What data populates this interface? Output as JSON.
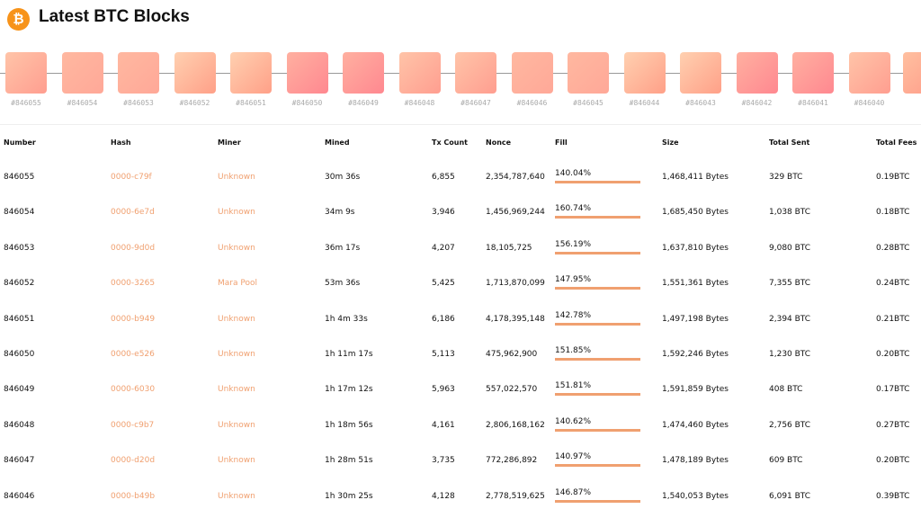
{
  "header": {
    "title": "Latest BTC Blocks"
  },
  "blocks": [
    "#846055",
    "#846054",
    "#846053",
    "#846052",
    "#846051",
    "#846050",
    "#846049",
    "#846048",
    "#846047",
    "#846046",
    "#846045",
    "#846044",
    "#846043",
    "#846042",
    "#846041",
    "#846040"
  ],
  "table": {
    "columns": [
      "Number",
      "Hash",
      "Miner",
      "Mined",
      "Tx Count",
      "Nonce",
      "Fill",
      "Size",
      "Total Sent",
      "Total Fees"
    ],
    "rows": [
      [
        "846055",
        "0000-c79f",
        "Unknown",
        "30m 36s",
        "6,855",
        "2,354,787,640",
        "140.04%",
        "1,468,411 Bytes",
        "329 BTC",
        "0.19BTC"
      ],
      [
        "846054",
        "0000-6e7d",
        "Unknown",
        "34m 9s",
        "3,946",
        "1,456,969,244",
        "160.74%",
        "1,685,450 Bytes",
        "1,038 BTC",
        "0.18BTC"
      ],
      [
        "846053",
        "0000-9d0d",
        "Unknown",
        "36m 17s",
        "4,207",
        "18,105,725",
        "156.19%",
        "1,637,810 Bytes",
        "9,080 BTC",
        "0.28BTC"
      ],
      [
        "846052",
        "0000-3265",
        "Mara Pool",
        "53m 36s",
        "5,425",
        "1,713,870,099",
        "147.95%",
        "1,551,361 Bytes",
        "7,355 BTC",
        "0.24BTC"
      ],
      [
        "846051",
        "0000-b949",
        "Unknown",
        "1h 4m 33s",
        "6,186",
        "4,178,395,148",
        "142.78%",
        "1,497,198 Bytes",
        "2,394 BTC",
        "0.21BTC"
      ],
      [
        "846050",
        "0000-e526",
        "Unknown",
        "1h 11m 17s",
        "5,113",
        "475,962,900",
        "151.85%",
        "1,592,246 Bytes",
        "1,230 BTC",
        "0.20BTC"
      ],
      [
        "846049",
        "0000-6030",
        "Unknown",
        "1h 17m 12s",
        "5,963",
        "557,022,570",
        "151.81%",
        "1,591,859 Bytes",
        "408 BTC",
        "0.17BTC"
      ],
      [
        "846048",
        "0000-c9b7",
        "Unknown",
        "1h 18m 56s",
        "4,161",
        "2,806,168,162",
        "140.62%",
        "1,474,460 Bytes",
        "2,756 BTC",
        "0.27BTC"
      ],
      [
        "846047",
        "0000-d20d",
        "Unknown",
        "1h 28m 51s",
        "3,735",
        "772,286,892",
        "140.97%",
        "1,478,189 Bytes",
        "609 BTC",
        "0.20BTC"
      ],
      [
        "846046",
        "0000-b49b",
        "Unknown",
        "1h 30m 25s",
        "4,128",
        "2,778,519,625",
        "146.87%",
        "1,540,053 Bytes",
        "6,091 BTC",
        "0.39BTC"
      ]
    ]
  }
}
